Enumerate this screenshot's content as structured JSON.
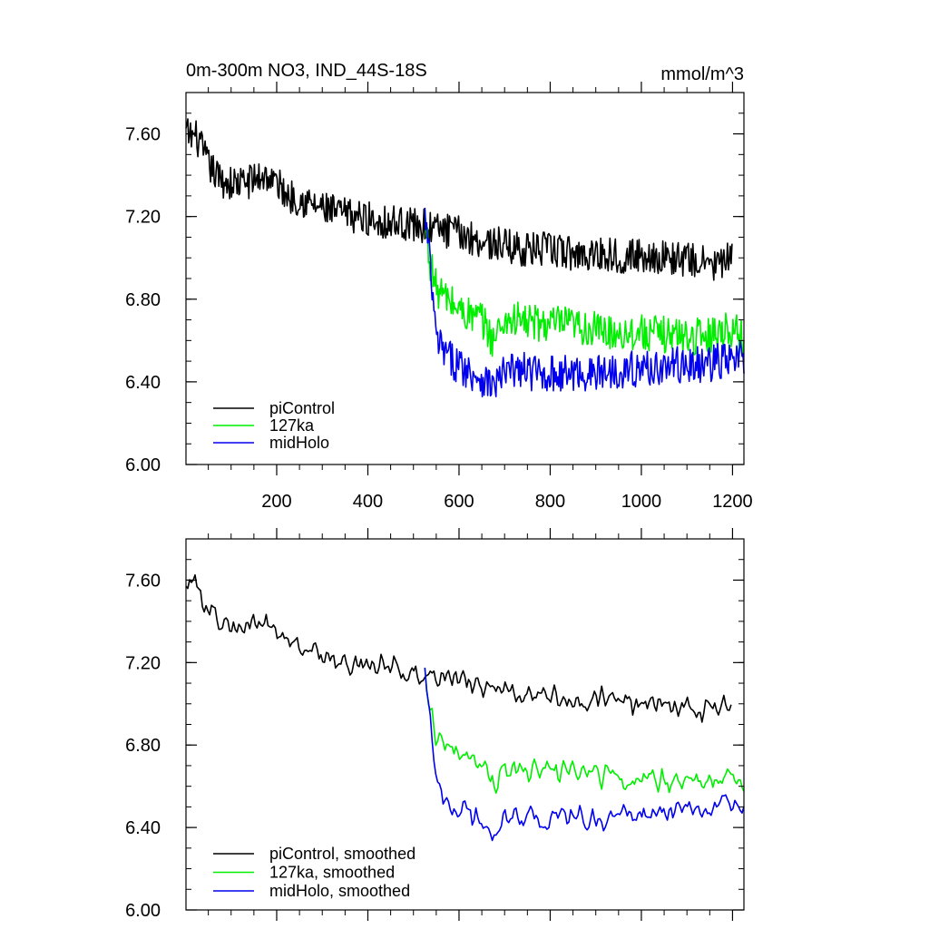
{
  "chart_data": [
    {
      "type": "line",
      "title": "0m-300m NO3, IND_44S-18S",
      "units": "mmol/m^3",
      "xlim": [
        1,
        1225
      ],
      "ylim": [
        6.0,
        7.8
      ],
      "x_ticks": [
        200,
        400,
        600,
        800,
        1000,
        1200
      ],
      "x_tick_labels": [
        "200",
        "400",
        "600",
        "800",
        "1000",
        "1200"
      ],
      "y_ticks": [
        6.0,
        6.4,
        6.8,
        7.2,
        7.6
      ],
      "y_tick_labels": [
        "6.00",
        "6.40",
        "6.80",
        "7.20",
        "7.60"
      ],
      "legend_position": "bottom-left",
      "grid": false,
      "series": [
        {
          "name": "piControl",
          "color": "#000000",
          "points": [
            [
              1,
              7.6
            ],
            [
              25,
              7.58
            ],
            [
              50,
              7.45
            ],
            [
              75,
              7.38
            ],
            [
              100,
              7.36
            ],
            [
              125,
              7.36
            ],
            [
              150,
              7.38
            ],
            [
              175,
              7.4
            ],
            [
              200,
              7.36
            ],
            [
              225,
              7.3
            ],
            [
              250,
              7.29
            ],
            [
              275,
              7.26
            ],
            [
              300,
              7.24
            ],
            [
              325,
              7.22
            ],
            [
              350,
              7.21
            ],
            [
              375,
              7.2
            ],
            [
              400,
              7.19
            ],
            [
              425,
              7.18
            ],
            [
              450,
              7.17
            ],
            [
              475,
              7.17
            ],
            [
              500,
              7.16
            ],
            [
              525,
              7.15
            ],
            [
              550,
              7.14
            ],
            [
              575,
              7.13
            ],
            [
              600,
              7.12
            ],
            [
              625,
              7.1
            ],
            [
              650,
              7.08
            ],
            [
              675,
              7.07
            ],
            [
              700,
              7.06
            ],
            [
              725,
              7.05
            ],
            [
              750,
              7.04
            ],
            [
              775,
              7.04
            ],
            [
              800,
              7.04
            ],
            [
              825,
              7.03
            ],
            [
              850,
              7.02
            ],
            [
              875,
              7.02
            ],
            [
              900,
              7.02
            ],
            [
              925,
              7.02
            ],
            [
              950,
              7.01
            ],
            [
              975,
              7.01
            ],
            [
              1000,
              7.01
            ],
            [
              1025,
              7.01
            ],
            [
              1050,
              7.0
            ],
            [
              1075,
              7.0
            ],
            [
              1100,
              6.99
            ],
            [
              1125,
              6.98
            ],
            [
              1150,
              6.97
            ],
            [
              1175,
              6.97
            ],
            [
              1200,
              7.0
            ]
          ],
          "noise": 0.085
        },
        {
          "name": "127ka",
          "color": "#00ee00",
          "points": [
            [
              525,
              7.2
            ],
            [
              535,
              7.0
            ],
            [
              550,
              6.85
            ],
            [
              575,
              6.8
            ],
            [
              600,
              6.75
            ],
            [
              625,
              6.72
            ],
            [
              650,
              6.7
            ],
            [
              675,
              6.6
            ],
            [
              700,
              6.7
            ],
            [
              725,
              6.7
            ],
            [
              750,
              6.69
            ],
            [
              775,
              6.68
            ],
            [
              800,
              6.68
            ],
            [
              825,
              6.68
            ],
            [
              850,
              6.67
            ],
            [
              875,
              6.66
            ],
            [
              900,
              6.65
            ],
            [
              925,
              6.64
            ],
            [
              950,
              6.64
            ],
            [
              975,
              6.64
            ],
            [
              1000,
              6.64
            ],
            [
              1025,
              6.63
            ],
            [
              1050,
              6.63
            ],
            [
              1075,
              6.63
            ],
            [
              1100,
              6.62
            ],
            [
              1125,
              6.62
            ],
            [
              1150,
              6.63
            ],
            [
              1175,
              6.65
            ],
            [
              1200,
              6.66
            ],
            [
              1225,
              6.6
            ]
          ],
          "noise": 0.09
        },
        {
          "name": "midHolo",
          "color": "#0000ee",
          "points": [
            [
              525,
              7.2
            ],
            [
              535,
              7.0
            ],
            [
              550,
              6.6
            ],
            [
              575,
              6.52
            ],
            [
              600,
              6.48
            ],
            [
              625,
              6.45
            ],
            [
              650,
              6.42
            ],
            [
              675,
              6.38
            ],
            [
              700,
              6.44
            ],
            [
              725,
              6.46
            ],
            [
              750,
              6.45
            ],
            [
              775,
              6.44
            ],
            [
              800,
              6.44
            ],
            [
              825,
              6.44
            ],
            [
              850,
              6.44
            ],
            [
              875,
              6.44
            ],
            [
              900,
              6.44
            ],
            [
              925,
              6.45
            ],
            [
              950,
              6.46
            ],
            [
              975,
              6.46
            ],
            [
              1000,
              6.46
            ],
            [
              1025,
              6.47
            ],
            [
              1050,
              6.47
            ],
            [
              1075,
              6.48
            ],
            [
              1100,
              6.48
            ],
            [
              1125,
              6.48
            ],
            [
              1150,
              6.49
            ],
            [
              1175,
              6.5
            ],
            [
              1200,
              6.5
            ],
            [
              1225,
              6.52
            ]
          ],
          "noise": 0.09
        }
      ]
    },
    {
      "type": "line",
      "title": "",
      "units": "",
      "xlim": [
        1,
        1225
      ],
      "ylim": [
        6.0,
        7.8
      ],
      "x_ticks": [
        200,
        400,
        600,
        800,
        1000,
        1200
      ],
      "x_tick_labels": [],
      "y_ticks": [
        6.0,
        6.4,
        6.8,
        7.2,
        7.6
      ],
      "y_tick_labels": [
        "6.00",
        "6.40",
        "6.80",
        "7.20",
        "7.60"
      ],
      "legend_position": "bottom-left",
      "grid": false,
      "series": [
        {
          "name": "piControl, smoothed",
          "color": "#000000",
          "points": [
            [
              1,
              7.6
            ],
            [
              25,
              7.58
            ],
            [
              50,
              7.45
            ],
            [
              75,
              7.38
            ],
            [
              100,
              7.36
            ],
            [
              125,
              7.36
            ],
            [
              150,
              7.38
            ],
            [
              175,
              7.4
            ],
            [
              200,
              7.36
            ],
            [
              225,
              7.3
            ],
            [
              250,
              7.29
            ],
            [
              275,
              7.26
            ],
            [
              300,
              7.24
            ],
            [
              325,
              7.22
            ],
            [
              350,
              7.21
            ],
            [
              375,
              7.2
            ],
            [
              400,
              7.19
            ],
            [
              425,
              7.18
            ],
            [
              450,
              7.17
            ],
            [
              475,
              7.17
            ],
            [
              500,
              7.16
            ],
            [
              525,
              7.15
            ],
            [
              550,
              7.14
            ],
            [
              575,
              7.13
            ],
            [
              600,
              7.12
            ],
            [
              625,
              7.1
            ],
            [
              650,
              7.08
            ],
            [
              675,
              7.07
            ],
            [
              700,
              7.06
            ],
            [
              725,
              7.05
            ],
            [
              750,
              7.04
            ],
            [
              775,
              7.04
            ],
            [
              800,
              7.04
            ],
            [
              825,
              7.03
            ],
            [
              850,
              7.02
            ],
            [
              875,
              7.02
            ],
            [
              900,
              7.02
            ],
            [
              925,
              7.02
            ],
            [
              950,
              7.01
            ],
            [
              975,
              7.01
            ],
            [
              1000,
              7.01
            ],
            [
              1025,
              7.01
            ],
            [
              1050,
              7.0
            ],
            [
              1075,
              7.0
            ],
            [
              1100,
              6.99
            ],
            [
              1125,
              6.98
            ],
            [
              1150,
              6.97
            ],
            [
              1175,
              6.97
            ],
            [
              1200,
              7.0
            ]
          ],
          "noise": 0.045
        },
        {
          "name": "127ka, smoothed",
          "color": "#00ee00",
          "points": [
            [
              525,
              7.2
            ],
            [
              535,
              7.0
            ],
            [
              550,
              6.85
            ],
            [
              575,
              6.8
            ],
            [
              600,
              6.75
            ],
            [
              625,
              6.72
            ],
            [
              650,
              6.7
            ],
            [
              675,
              6.6
            ],
            [
              700,
              6.7
            ],
            [
              725,
              6.7
            ],
            [
              750,
              6.69
            ],
            [
              775,
              6.68
            ],
            [
              800,
              6.68
            ],
            [
              825,
              6.68
            ],
            [
              850,
              6.67
            ],
            [
              875,
              6.66
            ],
            [
              900,
              6.65
            ],
            [
              925,
              6.64
            ],
            [
              950,
              6.64
            ],
            [
              975,
              6.64
            ],
            [
              1000,
              6.64
            ],
            [
              1025,
              6.63
            ],
            [
              1050,
              6.63
            ],
            [
              1075,
              6.63
            ],
            [
              1100,
              6.62
            ],
            [
              1125,
              6.62
            ],
            [
              1150,
              6.63
            ],
            [
              1175,
              6.65
            ],
            [
              1200,
              6.66
            ],
            [
              1225,
              6.6
            ]
          ],
          "noise": 0.045
        },
        {
          "name": "midHolo, smoothed",
          "color": "#0000ee",
          "points": [
            [
              525,
              7.2
            ],
            [
              535,
              7.0
            ],
            [
              550,
              6.6
            ],
            [
              575,
              6.52
            ],
            [
              600,
              6.48
            ],
            [
              625,
              6.45
            ],
            [
              650,
              6.42
            ],
            [
              675,
              6.38
            ],
            [
              700,
              6.44
            ],
            [
              725,
              6.46
            ],
            [
              750,
              6.45
            ],
            [
              775,
              6.44
            ],
            [
              800,
              6.44
            ],
            [
              825,
              6.44
            ],
            [
              850,
              6.44
            ],
            [
              875,
              6.44
            ],
            [
              900,
              6.44
            ],
            [
              925,
              6.45
            ],
            [
              950,
              6.46
            ],
            [
              975,
              6.46
            ],
            [
              1000,
              6.46
            ],
            [
              1025,
              6.47
            ],
            [
              1050,
              6.47
            ],
            [
              1075,
              6.48
            ],
            [
              1100,
              6.48
            ],
            [
              1125,
              6.48
            ],
            [
              1150,
              6.49
            ],
            [
              1175,
              6.5
            ],
            [
              1200,
              6.5
            ],
            [
              1225,
              6.52
            ]
          ],
          "noise": 0.045
        }
      ]
    }
  ]
}
